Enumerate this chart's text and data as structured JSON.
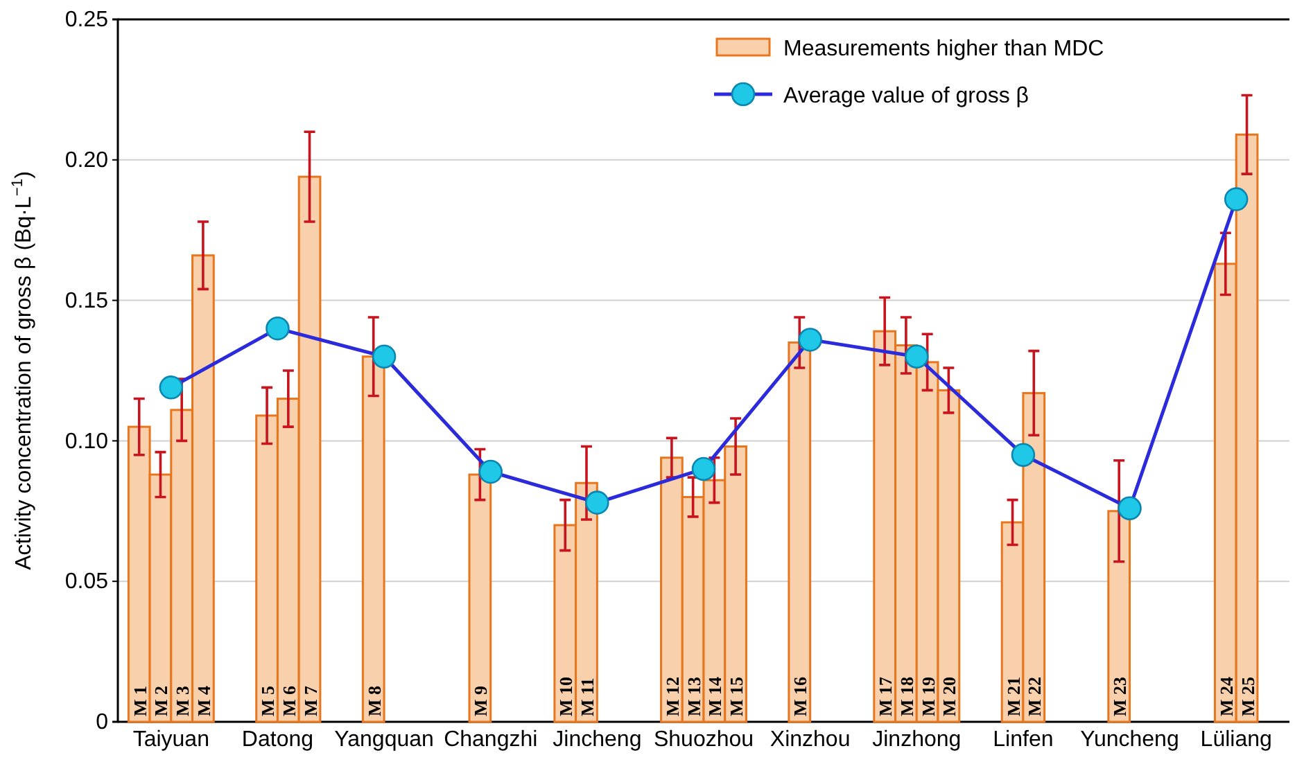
{
  "chart_data": {
    "type": "bar",
    "ylabel": "Activity concentration of gross β (Bq·L$^{−1}$)",
    "categories": [
      "Taiyuan",
      "Datong",
      "Yangquan",
      "Changzhi",
      "Jincheng",
      "Shuozhou",
      "Xinzhou",
      "Jinzhong",
      "Linfen",
      "Yuncheng",
      "Lüliang"
    ],
    "ylim": [
      0,
      0.25
    ],
    "yticks": [
      {
        "value": 0,
        "label": "0"
      },
      {
        "value": 0.05,
        "label": "0.05"
      },
      {
        "value": 0.1,
        "label": "0.10"
      },
      {
        "value": 0.15,
        "label": "0.15"
      },
      {
        "value": 0.2,
        "label": "0.20"
      },
      {
        "value": 0.25,
        "label": "0.25"
      }
    ],
    "grid": "y",
    "legend": "top right",
    "marker": "circle",
    "series": [
      {
        "name": "Measurements higher than MDC",
        "color": "#f9d0ac",
        "values": [
          0.105,
          null,
          null,
          null,
          0.07,
          0.094,
          null,
          0.139,
          null,
          null,
          null
        ],
        "errors": [
          0.01,
          null,
          null,
          null,
          0.009,
          0.007,
          null,
          0.012,
          null,
          null,
          null
        ],
        "value_labels": [
          "M 1",
          null,
          null,
          null,
          "M 10",
          "M 12",
          null,
          "M 17",
          null,
          null,
          null
        ]
      },
      {
        "color": "#f9d0ac",
        "values": [
          0.088,
          0.109,
          0.13,
          0.088,
          0.085,
          0.08,
          0.135,
          0.134,
          0.071,
          0.075,
          0.163
        ],
        "errors": [
          0.008,
          0.01,
          0.014,
          0.009,
          0.013,
          0.007,
          0.009,
          0.01,
          0.008,
          0.018,
          0.011
        ],
        "value_labels": [
          "M 2",
          "M 5",
          "M 8",
          "M 9",
          "M 11",
          "M 13",
          "M 16",
          "M 18",
          "M 21",
          "M 23",
          "M 24"
        ]
      },
      {
        "color": "#f9d0ac",
        "values": [
          0.111,
          0.115,
          null,
          null,
          null,
          0.086,
          null,
          0.128,
          0.117,
          null,
          0.209
        ],
        "errors": [
          0.011,
          0.01,
          null,
          null,
          null,
          0.008,
          null,
          0.01,
          0.015,
          null,
          0.014
        ],
        "value_labels": [
          "M 3",
          "M 6",
          null,
          null,
          null,
          "M 14",
          null,
          "M 19",
          "M 22",
          null,
          "M 25"
        ]
      },
      {
        "color": "#f9d0ac",
        "values": [
          0.166,
          0.194,
          null,
          null,
          null,
          0.098,
          null,
          0.118,
          null,
          null,
          null
        ],
        "errors": [
          0.012,
          0.016,
          null,
          null,
          null,
          0.01,
          null,
          0.008,
          null,
          null,
          null
        ],
        "value_labels": [
          "M 4",
          "M 7",
          null,
          null,
          null,
          "M 15",
          null,
          "M 20",
          null,
          null,
          null
        ]
      },
      {
        "type": "line",
        "name": "Average value of gross β",
        "color": "#2b2bdb",
        "values": [
          0.119,
          0.14,
          0.13,
          0.089,
          0.078,
          0.09,
          0.136,
          0.13,
          0.095,
          0.076,
          0.186
        ]
      }
    ]
  }
}
